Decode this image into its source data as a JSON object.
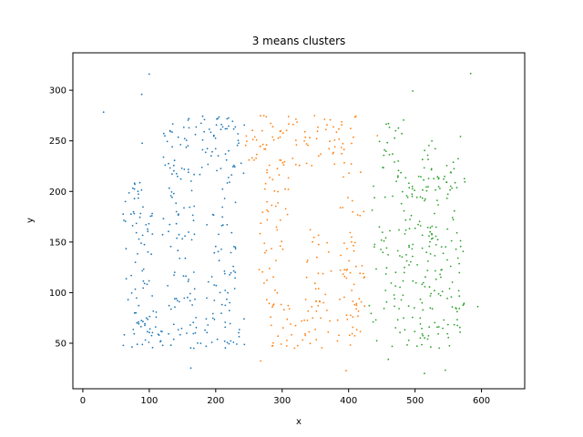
{
  "chart_data": {
    "type": "scatter",
    "title": "3 means clusters",
    "xlabel": "x",
    "ylabel": "y",
    "xlim": [
      -15,
      665
    ],
    "ylim": [
      5,
      337
    ],
    "xticks": [
      0,
      100,
      200,
      300,
      400,
      500,
      600
    ],
    "yticks": [
      50,
      100,
      150,
      200,
      250,
      300
    ],
    "grid": false,
    "series": [
      {
        "color": "#1f77b4",
        "regions": [
          {
            "x": [
              60,
              105
            ],
            "y": [
              45,
              215
            ],
            "density": 90
          },
          {
            "x": [
              60,
              245
            ],
            "y": [
              45,
              85
            ],
            "density": 95
          },
          {
            "x": [
              120,
              170
            ],
            "y": [
              85,
              245
            ],
            "density": 80
          },
          {
            "x": [
              185,
              230
            ],
            "y": [
              85,
              215
            ],
            "density": 80
          },
          {
            "x": [
              120,
              245
            ],
            "y": [
              215,
              275
            ],
            "density": 100
          },
          {
            "x": [
              80,
              110
            ],
            "y": [
              240,
              300
            ],
            "density": 10
          },
          {
            "x": [
              10,
              245
            ],
            "y": [
              20,
              320
            ],
            "density": 1
          }
        ]
      },
      {
        "color": "#ff7f0e",
        "regions": [
          {
            "x": [
              245,
              330
            ],
            "y": [
              215,
              275
            ],
            "density": 100
          },
          {
            "x": [
              265,
              310
            ],
            "y": [
              85,
              215
            ],
            "density": 80
          },
          {
            "x": [
              280,
              420
            ],
            "y": [
              45,
              85
            ],
            "density": 95
          },
          {
            "x": [
              335,
              375
            ],
            "y": [
              85,
              165
            ],
            "density": 80
          },
          {
            "x": [
              385,
              425
            ],
            "y": [
              85,
              220
            ],
            "density": 85
          },
          {
            "x": [
              330,
              410
            ],
            "y": [
              225,
              275
            ],
            "density": 100
          },
          {
            "x": [
              245,
              445
            ],
            "y": [
              20,
              320
            ],
            "density": 1
          }
        ]
      },
      {
        "color": "#2ca02c",
        "regions": [
          {
            "x": [
              445,
              485
            ],
            "y": [
              215,
              275
            ],
            "density": 90
          },
          {
            "x": [
              430,
              470
            ],
            "y": [
              45,
              210
            ],
            "density": 50
          },
          {
            "x": [
              470,
              575
            ],
            "y": [
              45,
              215
            ],
            "density": 110
          },
          {
            "x": [
              510,
              570
            ],
            "y": [
              200,
              255
            ],
            "density": 70
          },
          {
            "x": [
              445,
              645
            ],
            "y": [
              20,
              320
            ],
            "density": 1
          }
        ]
      }
    ]
  }
}
